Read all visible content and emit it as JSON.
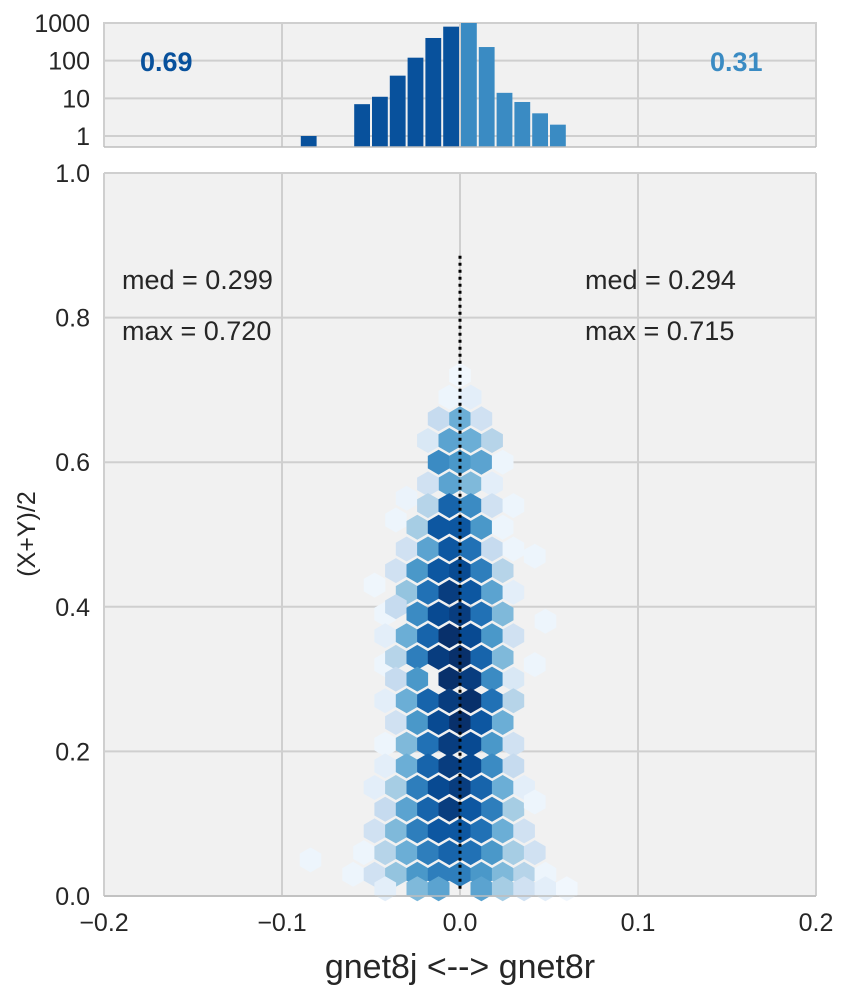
{
  "chart_data": [
    {
      "type": "bar",
      "panel": "marginal-histogram",
      "y_scale": "log",
      "y_ticks": [
        "1",
        "10",
        "100",
        "1000"
      ],
      "x_range": [
        -0.2,
        0.2
      ],
      "bin_centers": [
        -0.085,
        -0.055,
        -0.045,
        -0.035,
        -0.025,
        -0.015,
        -0.005,
        0.005,
        0.015,
        0.025,
        0.035,
        0.045,
        0.055
      ],
      "counts": [
        1,
        7,
        11,
        40,
        120,
        400,
        800,
        1000,
        230,
        14,
        8,
        4,
        2
      ],
      "left_color": "#08519c",
      "right_color": "#3a8bc3",
      "left_fraction": "0.69",
      "right_fraction": "0.31",
      "grid": true
    },
    {
      "type": "heatmap",
      "subtype": "hexbin",
      "xlabel": "gnet8j <--> gnet8r",
      "ylabel": "(X+Y)/2",
      "xlim": [
        -0.2,
        0.2
      ],
      "ylim": [
        0.0,
        1.0
      ],
      "x_ticks": [
        "−0.2",
        "−0.1",
        "0.0",
        "0.1",
        "0.2"
      ],
      "y_ticks": [
        "0.0",
        "0.2",
        "0.4",
        "0.6",
        "0.8",
        "1.0"
      ],
      "colormap": "Blues",
      "hex_bins": [
        {
          "x": 0.0,
          "y": 0.72,
          "d": 0.03
        },
        {
          "x": -0.006,
          "y": 0.69,
          "d": 0.05
        },
        {
          "x": 0.006,
          "y": 0.69,
          "d": 0.1
        },
        {
          "x": -0.012,
          "y": 0.66,
          "d": 0.25
        },
        {
          "x": 0.0,
          "y": 0.66,
          "d": 0.5
        },
        {
          "x": 0.012,
          "y": 0.66,
          "d": 0.2
        },
        {
          "x": -0.018,
          "y": 0.63,
          "d": 0.15
        },
        {
          "x": -0.006,
          "y": 0.63,
          "d": 0.55
        },
        {
          "x": 0.006,
          "y": 0.63,
          "d": 0.5
        },
        {
          "x": 0.018,
          "y": 0.63,
          "d": 0.3
        },
        {
          "x": -0.012,
          "y": 0.6,
          "d": 0.65
        },
        {
          "x": 0.0,
          "y": 0.6,
          "d": 0.6
        },
        {
          "x": 0.012,
          "y": 0.6,
          "d": 0.55
        },
        {
          "x": 0.024,
          "y": 0.6,
          "d": 0.05
        },
        {
          "x": -0.006,
          "y": 0.57,
          "d": 0.55
        },
        {
          "x": 0.006,
          "y": 0.57,
          "d": 0.45
        },
        {
          "x": -0.018,
          "y": 0.57,
          "d": 0.2
        },
        {
          "x": 0.018,
          "y": 0.57,
          "d": 0.1
        },
        {
          "x": -0.03,
          "y": 0.55,
          "d": 0.06
        },
        {
          "x": -0.018,
          "y": 0.54,
          "d": 0.3
        },
        {
          "x": -0.006,
          "y": 0.54,
          "d": 0.8
        },
        {
          "x": 0.006,
          "y": 0.54,
          "d": 0.65
        },
        {
          "x": 0.018,
          "y": 0.54,
          "d": 0.2
        },
        {
          "x": 0.03,
          "y": 0.54,
          "d": 0.05
        },
        {
          "x": -0.036,
          "y": 0.52,
          "d": 0.05
        },
        {
          "x": -0.024,
          "y": 0.51,
          "d": 0.35
        },
        {
          "x": -0.012,
          "y": 0.51,
          "d": 0.85
        },
        {
          "x": 0.0,
          "y": 0.51,
          "d": 0.85
        },
        {
          "x": 0.012,
          "y": 0.51,
          "d": 0.6
        },
        {
          "x": 0.024,
          "y": 0.51,
          "d": 0.05
        },
        {
          "x": -0.03,
          "y": 0.48,
          "d": 0.2
        },
        {
          "x": -0.018,
          "y": 0.48,
          "d": 0.55
        },
        {
          "x": -0.006,
          "y": 0.48,
          "d": 0.85
        },
        {
          "x": 0.006,
          "y": 0.48,
          "d": 0.75
        },
        {
          "x": 0.018,
          "y": 0.48,
          "d": 0.25
        },
        {
          "x": 0.03,
          "y": 0.48,
          "d": 0.05
        },
        {
          "x": 0.042,
          "y": 0.47,
          "d": 0.05
        },
        {
          "x": -0.036,
          "y": 0.45,
          "d": 0.2
        },
        {
          "x": -0.024,
          "y": 0.45,
          "d": 0.6
        },
        {
          "x": -0.012,
          "y": 0.45,
          "d": 0.85
        },
        {
          "x": 0.0,
          "y": 0.45,
          "d": 0.9
        },
        {
          "x": 0.012,
          "y": 0.45,
          "d": 0.7
        },
        {
          "x": 0.024,
          "y": 0.45,
          "d": 0.3
        },
        {
          "x": -0.048,
          "y": 0.43,
          "d": 0.04
        },
        {
          "x": -0.03,
          "y": 0.42,
          "d": 0.4
        },
        {
          "x": -0.018,
          "y": 0.42,
          "d": 0.75
        },
        {
          "x": -0.006,
          "y": 0.42,
          "d": 0.95
        },
        {
          "x": 0.006,
          "y": 0.42,
          "d": 0.85
        },
        {
          "x": 0.018,
          "y": 0.42,
          "d": 0.55
        },
        {
          "x": 0.03,
          "y": 0.42,
          "d": 0.1
        },
        {
          "x": -0.042,
          "y": 0.39,
          "d": 0.05
        },
        {
          "x": -0.036,
          "y": 0.4,
          "d": 0.25
        },
        {
          "x": -0.024,
          "y": 0.39,
          "d": 0.65
        },
        {
          "x": -0.012,
          "y": 0.39,
          "d": 0.9
        },
        {
          "x": 0.0,
          "y": 0.39,
          "d": 0.95
        },
        {
          "x": 0.012,
          "y": 0.39,
          "d": 0.75
        },
        {
          "x": 0.024,
          "y": 0.39,
          "d": 0.45
        },
        {
          "x": 0.048,
          "y": 0.38,
          "d": 0.05
        },
        {
          "x": -0.042,
          "y": 0.36,
          "d": 0.1
        },
        {
          "x": -0.03,
          "y": 0.36,
          "d": 0.5
        },
        {
          "x": -0.018,
          "y": 0.36,
          "d": 0.8
        },
        {
          "x": -0.006,
          "y": 0.36,
          "d": 1.0
        },
        {
          "x": 0.006,
          "y": 0.36,
          "d": 0.9
        },
        {
          "x": 0.018,
          "y": 0.36,
          "d": 0.6
        },
        {
          "x": 0.03,
          "y": 0.36,
          "d": 0.2
        },
        {
          "x": -0.042,
          "y": 0.32,
          "d": 0.05
        },
        {
          "x": -0.036,
          "y": 0.33,
          "d": 0.3
        },
        {
          "x": -0.024,
          "y": 0.33,
          "d": 0.7
        },
        {
          "x": -0.012,
          "y": 0.33,
          "d": 0.95
        },
        {
          "x": 0.0,
          "y": 0.33,
          "d": 1.0
        },
        {
          "x": 0.012,
          "y": 0.33,
          "d": 0.8
        },
        {
          "x": 0.024,
          "y": 0.33,
          "d": 0.45
        },
        {
          "x": 0.042,
          "y": 0.32,
          "d": 0.05
        },
        {
          "x": -0.036,
          "y": 0.3,
          "d": 0.25
        },
        {
          "x": -0.024,
          "y": 0.3,
          "d": 0.6
        },
        {
          "x": -0.006,
          "y": 0.3,
          "d": 1.0
        },
        {
          "x": 0.006,
          "y": 0.3,
          "d": 0.95
        },
        {
          "x": 0.018,
          "y": 0.3,
          "d": 0.65
        },
        {
          "x": 0.03,
          "y": 0.3,
          "d": 0.15
        },
        {
          "x": -0.042,
          "y": 0.27,
          "d": 0.1
        },
        {
          "x": -0.03,
          "y": 0.27,
          "d": 0.5
        },
        {
          "x": -0.018,
          "y": 0.27,
          "d": 0.8
        },
        {
          "x": -0.006,
          "y": 0.27,
          "d": 0.95
        },
        {
          "x": 0.006,
          "y": 0.27,
          "d": 1.0
        },
        {
          "x": 0.018,
          "y": 0.27,
          "d": 0.75
        },
        {
          "x": 0.03,
          "y": 0.27,
          "d": 0.3
        },
        {
          "x": -0.036,
          "y": 0.24,
          "d": 0.2
        },
        {
          "x": -0.024,
          "y": 0.24,
          "d": 0.6
        },
        {
          "x": -0.012,
          "y": 0.24,
          "d": 0.9
        },
        {
          "x": 0.0,
          "y": 0.24,
          "d": 1.0
        },
        {
          "x": 0.012,
          "y": 0.24,
          "d": 0.85
        },
        {
          "x": 0.024,
          "y": 0.24,
          "d": 0.5
        },
        {
          "x": -0.042,
          "y": 0.21,
          "d": 0.05
        },
        {
          "x": -0.03,
          "y": 0.21,
          "d": 0.45
        },
        {
          "x": -0.018,
          "y": 0.21,
          "d": 0.75
        },
        {
          "x": -0.006,
          "y": 0.21,
          "d": 0.95
        },
        {
          "x": 0.006,
          "y": 0.21,
          "d": 0.9
        },
        {
          "x": 0.018,
          "y": 0.21,
          "d": 0.6
        },
        {
          "x": 0.03,
          "y": 0.21,
          "d": 0.2
        },
        {
          "x": -0.042,
          "y": 0.18,
          "d": 0.1
        },
        {
          "x": -0.03,
          "y": 0.18,
          "d": 0.5
        },
        {
          "x": -0.018,
          "y": 0.18,
          "d": 0.8
        },
        {
          "x": -0.006,
          "y": 0.18,
          "d": 0.95
        },
        {
          "x": 0.006,
          "y": 0.18,
          "d": 0.9
        },
        {
          "x": 0.018,
          "y": 0.18,
          "d": 0.65
        },
        {
          "x": 0.03,
          "y": 0.18,
          "d": 0.25
        },
        {
          "x": -0.048,
          "y": 0.15,
          "d": 0.1
        },
        {
          "x": -0.036,
          "y": 0.15,
          "d": 0.35
        },
        {
          "x": -0.024,
          "y": 0.15,
          "d": 0.7
        },
        {
          "x": -0.012,
          "y": 0.15,
          "d": 0.9
        },
        {
          "x": 0.0,
          "y": 0.15,
          "d": 0.95
        },
        {
          "x": 0.012,
          "y": 0.15,
          "d": 0.8
        },
        {
          "x": 0.024,
          "y": 0.15,
          "d": 0.5
        },
        {
          "x": 0.036,
          "y": 0.15,
          "d": 0.1
        },
        {
          "x": -0.042,
          "y": 0.12,
          "d": 0.25
        },
        {
          "x": -0.03,
          "y": 0.12,
          "d": 0.55
        },
        {
          "x": -0.018,
          "y": 0.12,
          "d": 0.8
        },
        {
          "x": -0.006,
          "y": 0.12,
          "d": 0.95
        },
        {
          "x": 0.006,
          "y": 0.12,
          "d": 0.85
        },
        {
          "x": 0.018,
          "y": 0.12,
          "d": 0.7
        },
        {
          "x": 0.03,
          "y": 0.12,
          "d": 0.35
        },
        {
          "x": 0.042,
          "y": 0.13,
          "d": 0.05
        },
        {
          "x": -0.048,
          "y": 0.09,
          "d": 0.2
        },
        {
          "x": -0.036,
          "y": 0.09,
          "d": 0.45
        },
        {
          "x": -0.024,
          "y": 0.09,
          "d": 0.7
        },
        {
          "x": -0.012,
          "y": 0.09,
          "d": 0.85
        },
        {
          "x": 0.0,
          "y": 0.09,
          "d": 0.85
        },
        {
          "x": 0.012,
          "y": 0.09,
          "d": 0.75
        },
        {
          "x": 0.024,
          "y": 0.09,
          "d": 0.5
        },
        {
          "x": 0.036,
          "y": 0.09,
          "d": 0.2
        },
        {
          "x": -0.054,
          "y": 0.06,
          "d": 0.05
        },
        {
          "x": -0.042,
          "y": 0.06,
          "d": 0.3
        },
        {
          "x": -0.03,
          "y": 0.06,
          "d": 0.5
        },
        {
          "x": -0.018,
          "y": 0.06,
          "d": 0.7
        },
        {
          "x": -0.006,
          "y": 0.06,
          "d": 0.8
        },
        {
          "x": 0.006,
          "y": 0.06,
          "d": 0.75
        },
        {
          "x": 0.018,
          "y": 0.06,
          "d": 0.6
        },
        {
          "x": 0.03,
          "y": 0.06,
          "d": 0.35
        },
        {
          "x": 0.042,
          "y": 0.06,
          "d": 0.2
        },
        {
          "x": -0.084,
          "y": 0.05,
          "d": 0.05
        },
        {
          "x": -0.06,
          "y": 0.03,
          "d": 0.05
        },
        {
          "x": -0.048,
          "y": 0.03,
          "d": 0.2
        },
        {
          "x": -0.036,
          "y": 0.03,
          "d": 0.4
        },
        {
          "x": -0.024,
          "y": 0.03,
          "d": 0.6
        },
        {
          "x": -0.012,
          "y": 0.03,
          "d": 0.7
        },
        {
          "x": 0.0,
          "y": 0.03,
          "d": 0.7
        },
        {
          "x": 0.012,
          "y": 0.03,
          "d": 0.6
        },
        {
          "x": 0.024,
          "y": 0.03,
          "d": 0.45
        },
        {
          "x": 0.036,
          "y": 0.03,
          "d": 0.3
        },
        {
          "x": 0.048,
          "y": 0.03,
          "d": 0.05
        },
        {
          "x": -0.042,
          "y": 0.01,
          "d": 0.1
        },
        {
          "x": -0.024,
          "y": 0.01,
          "d": 0.45
        },
        {
          "x": -0.012,
          "y": 0.01,
          "d": 0.55
        },
        {
          "x": 0.012,
          "y": 0.01,
          "d": 0.55
        },
        {
          "x": 0.024,
          "y": 0.01,
          "d": 0.35
        },
        {
          "x": 0.036,
          "y": 0.01,
          "d": 0.2
        },
        {
          "x": 0.048,
          "y": 0.01,
          "d": 0.1
        },
        {
          "x": 0.06,
          "y": 0.01,
          "d": 0.03
        }
      ],
      "reference_line": {
        "x": 0.0,
        "y_from": 0.01,
        "y_to": 0.89,
        "style": "dotted",
        "color": "#000000"
      },
      "annotations": {
        "left_med": "med = 0.299",
        "left_max": "max = 0.720",
        "right_med": "med = 0.294",
        "right_max": "max = 0.715"
      },
      "grid": true
    }
  ]
}
